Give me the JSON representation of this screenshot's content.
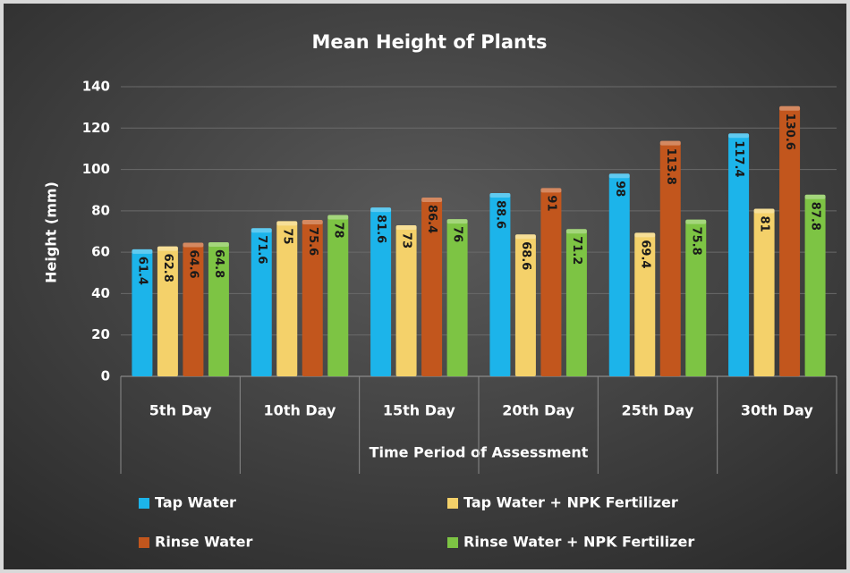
{
  "chart_data": {
    "type": "bar",
    "title": "Mean Height of Plants",
    "y_label": "Height (mm)",
    "x_label": "Time Period of Assessment",
    "categories": [
      "5th Day",
      "10th Day",
      "15th Day",
      "20th Day",
      "25th Day",
      "30th Day"
    ],
    "series": [
      {
        "name": "Tap Water",
        "color": "#1cb4ea",
        "values": [
          61.4,
          71.6,
          81.6,
          88.6,
          98,
          117.4
        ]
      },
      {
        "name": "Tap Water + NPK Fertilizer",
        "color": "#f4d16a",
        "values": [
          62.8,
          75,
          73,
          68.6,
          69.4,
          81
        ]
      },
      {
        "name": "Rinse Water",
        "color": "#c2561d",
        "values": [
          64.6,
          75.6,
          86.4,
          91,
          113.8,
          130.6
        ]
      },
      {
        "name": "Rinse Water + NPK Fertilizer",
        "color": "#7dc444",
        "values": [
          64.8,
          78,
          76,
          71.2,
          75.8,
          87.8
        ]
      }
    ],
    "ylim": [
      0,
      140
    ],
    "yticks": [
      0,
      20,
      40,
      60,
      80,
      100,
      120,
      140
    ],
    "grid": true
  }
}
